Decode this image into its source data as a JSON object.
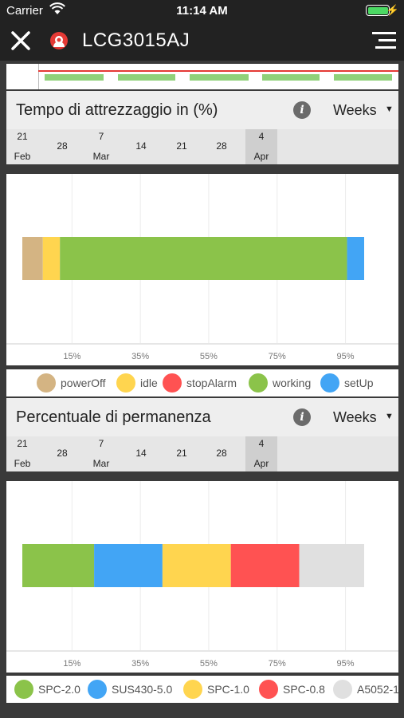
{
  "status_bar": {
    "carrier": "Carrier",
    "time": "11:14 AM"
  },
  "nav": {
    "title": "LCG3015AJ"
  },
  "section1": {
    "title": "Tempo di attrezzaggio in (%)",
    "info": "i",
    "period": "Weeks",
    "timeline": [
      {
        "num": "21",
        "mon": "Feb",
        "selected": false
      },
      {
        "num": "28",
        "mon": "",
        "selected": false
      },
      {
        "num": "7",
        "mon": "Mar",
        "selected": false
      },
      {
        "num": "14",
        "mon": "",
        "selected": false
      },
      {
        "num": "21",
        "mon": "",
        "selected": false
      },
      {
        "num": "28",
        "mon": "",
        "selected": false
      },
      {
        "num": "4",
        "mon": "Apr",
        "selected": true
      }
    ]
  },
  "section2": {
    "title": "Percentuale di permanenza",
    "info": "i",
    "period": "Weeks",
    "timeline": [
      {
        "num": "21",
        "mon": "Feb",
        "selected": false
      },
      {
        "num": "28",
        "mon": "",
        "selected": false
      },
      {
        "num": "7",
        "mon": "Mar",
        "selected": false
      },
      {
        "num": "14",
        "mon": "",
        "selected": false
      },
      {
        "num": "21",
        "mon": "",
        "selected": false
      },
      {
        "num": "28",
        "mon": "",
        "selected": false
      },
      {
        "num": "4",
        "mon": "Apr",
        "selected": true
      }
    ]
  },
  "colors": {
    "header_bg": "#222222",
    "powerOff": "#d4b483",
    "idle": "#ffd54f",
    "stopAlarm": "#ff5252",
    "working": "#8bc34a",
    "setUp": "#42a5f5",
    "light_gray": "#e0e0e0"
  },
  "chart_data": [
    {
      "type": "bar",
      "orientation": "horizontal",
      "stacked": true,
      "xlim": [
        0,
        100
      ],
      "ticks": [
        "15%",
        "35%",
        "55%",
        "75%",
        "95%"
      ],
      "tick_values": [
        15,
        35,
        55,
        75,
        95
      ],
      "grid": true,
      "legend_position": "bottom",
      "series": [
        {
          "name": "powerOff",
          "value": 6,
          "color": "#d4b483"
        },
        {
          "name": "idle",
          "value": 5,
          "color": "#ffd54f"
        },
        {
          "name": "stopAlarm",
          "value": 0,
          "color": "#ff5252"
        },
        {
          "name": "working",
          "value": 84,
          "color": "#8bc34a"
        },
        {
          "name": "setUp",
          "value": 5,
          "color": "#42a5f5"
        }
      ]
    },
    {
      "type": "bar",
      "orientation": "horizontal",
      "stacked": true,
      "xlim": [
        0,
        100
      ],
      "ticks": [
        "15%",
        "35%",
        "55%",
        "75%",
        "95%"
      ],
      "tick_values": [
        15,
        35,
        55,
        75,
        95
      ],
      "grid": true,
      "legend_position": "bottom",
      "series": [
        {
          "name": "SPC-2.0",
          "value": 21,
          "color": "#8bc34a"
        },
        {
          "name": "SUS430-5.0",
          "value": 20,
          "color": "#42a5f5"
        },
        {
          "name": "SPC-1.0",
          "value": 20,
          "color": "#ffd54f"
        },
        {
          "name": "SPC-0.8",
          "value": 20,
          "color": "#ff5252"
        },
        {
          "name": "A5052-1",
          "value": 19,
          "color": "#e0e0e0"
        }
      ]
    }
  ]
}
